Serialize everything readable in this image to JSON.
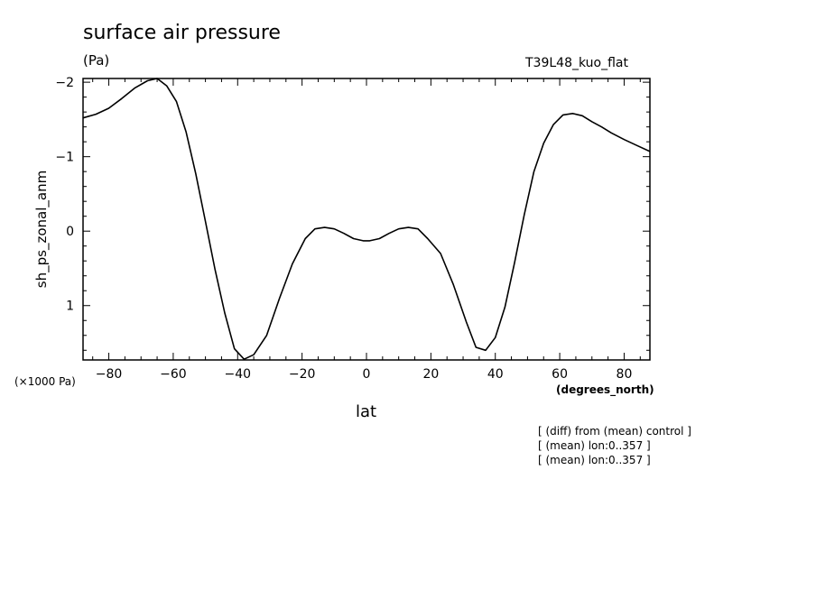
{
  "chart_data": {
    "type": "line",
    "title": "surface air pressure",
    "units": "(Pa)",
    "run_label": "T39L48_kuo_flat",
    "ylabel": "sh_ps_zonal_anm",
    "xlabel": "lat",
    "x_units": "(degrees_north)",
    "y_scale_note": "(×1000 Pa)",
    "xlim": [
      -88,
      88
    ],
    "ylim": [
      -2.05,
      1.73
    ],
    "y_inverted": true,
    "x_ticks": [
      -80,
      -60,
      -40,
      -20,
      0,
      20,
      40,
      60,
      80
    ],
    "x_tick_labels": [
      "−80",
      "−60",
      "−40",
      "−20",
      "0",
      "20",
      "40",
      "60",
      "80"
    ],
    "y_ticks": [
      -2,
      -1,
      0,
      1
    ],
    "y_tick_labels": [
      "−2",
      "−1",
      "0",
      "1"
    ],
    "grid": false,
    "series": [
      {
        "x": [
          -88,
          -84,
          -80,
          -76,
          -72,
          -68,
          -65,
          -62,
          -59,
          -56,
          -53,
          -50,
          -47,
          -44,
          -41,
          -38,
          -35,
          -31,
          -27,
          -23,
          -19,
          -16,
          -13,
          -10,
          -7,
          -4,
          -1,
          1,
          4,
          7,
          10,
          13,
          16,
          19,
          23,
          27,
          31,
          34,
          37,
          40,
          43,
          46,
          49,
          52,
          55,
          58,
          61,
          64,
          67,
          70,
          73,
          76,
          80,
          84,
          88
        ],
        "y": [
          -1.52,
          -1.57,
          -1.65,
          -1.78,
          -1.92,
          -2.02,
          -2.05,
          -1.95,
          -1.74,
          -1.33,
          -0.77,
          -0.13,
          0.52,
          1.1,
          1.58,
          1.72,
          1.66,
          1.4,
          0.9,
          0.44,
          0.1,
          -0.03,
          -0.05,
          -0.03,
          0.03,
          0.1,
          0.13,
          0.13,
          0.1,
          0.03,
          -0.03,
          -0.05,
          -0.03,
          0.1,
          0.3,
          0.72,
          1.22,
          1.56,
          1.6,
          1.43,
          1.02,
          0.42,
          -0.22,
          -0.8,
          -1.18,
          -1.43,
          -1.56,
          -1.58,
          -1.55,
          -1.47,
          -1.4,
          -1.32,
          -1.23,
          -1.15,
          -1.07
        ]
      }
    ]
  },
  "notes": [
    "[ (diff) from (mean) control ]",
    "[ (mean) lon:0..357 ]",
    "[ (mean) lon:0..357 ]"
  ]
}
